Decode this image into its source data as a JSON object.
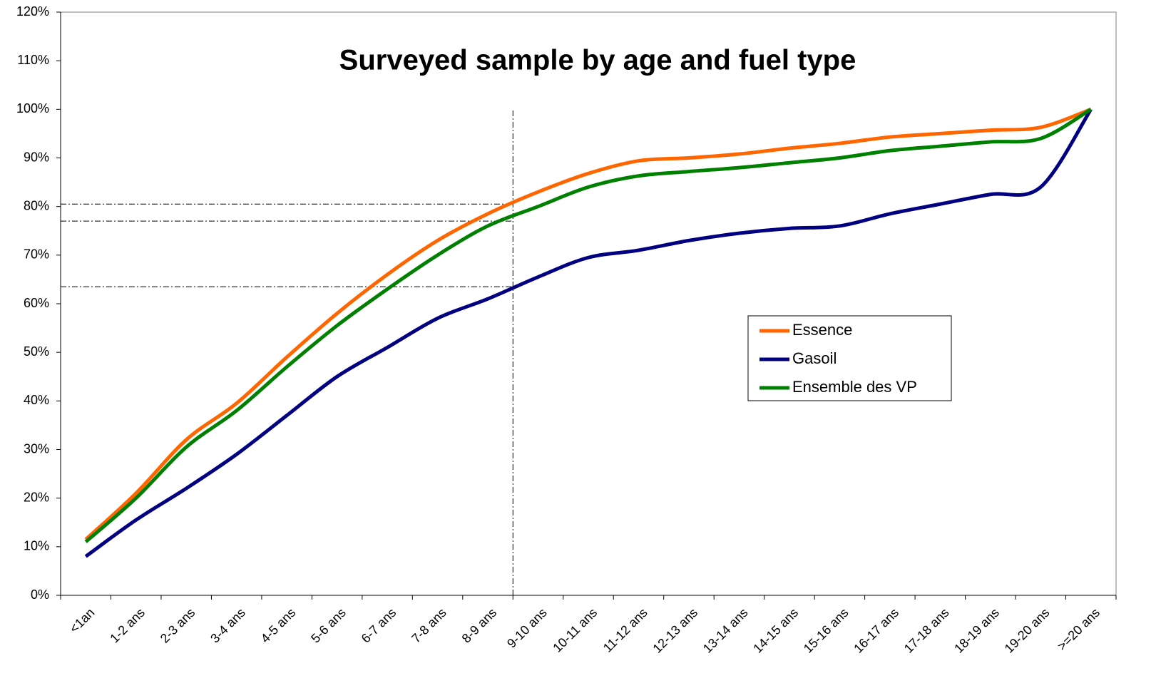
{
  "chart_data": {
    "type": "line",
    "title": "Surveyed sample by age and fuel type",
    "categories": [
      "<1an",
      "1-2 ans",
      "2-3 ans",
      "3-4 ans",
      "4-5 ans",
      "5-6 ans",
      "6-7 ans",
      "7-8 ans",
      "8-9 ans",
      "9-10 ans",
      "10-11 ans",
      "11-12 ans",
      "12-13 ans",
      "13-14 ans",
      "14-15 ans",
      "15-16 ans",
      "16-17 ans",
      "17-18 ans",
      "18-19 ans",
      "19-20 ans",
      ">=20 ans"
    ],
    "series": [
      {
        "name": "Essence",
        "color": "#ff6600",
        "values": [
          11.5,
          21,
          32,
          39.5,
          49,
          58,
          66,
          73,
          78.5,
          83,
          86.8,
          89.4,
          90,
          90.8,
          92,
          93,
          94.3,
          95,
          95.7,
          96.3,
          100
        ]
      },
      {
        "name": "Gasoil",
        "color": "#000080",
        "values": [
          8,
          15.5,
          22,
          29,
          37,
          45,
          51,
          57,
          61,
          65.5,
          69.5,
          71,
          73,
          74.5,
          75.5,
          76,
          78.5,
          80.5,
          82.5,
          84,
          100
        ]
      },
      {
        "name": "Ensemble des VP",
        "color": "#008000",
        "values": [
          11,
          20,
          30.5,
          38,
          47,
          55.5,
          63,
          70,
          76,
          80,
          84,
          86.3,
          87.2,
          88,
          89,
          90,
          91.5,
          92.4,
          93.3,
          94,
          100
        ]
      }
    ],
    "ylim": [
      0,
      120
    ],
    "yticks": [
      {
        "value": 0,
        "label": "0%"
      },
      {
        "value": 10,
        "label": "10%"
      },
      {
        "value": 20,
        "label": "20%"
      },
      {
        "value": 30,
        "label": "30%"
      },
      {
        "value": 40,
        "label": "40%"
      },
      {
        "value": 50,
        "label": "50%"
      },
      {
        "value": 60,
        "label": "60%"
      },
      {
        "value": 70,
        "label": "70%"
      },
      {
        "value": 80,
        "label": "80%"
      },
      {
        "value": 90,
        "label": "90%"
      },
      {
        "value": 100,
        "label": "100%"
      },
      {
        "value": 110,
        "label": "110%"
      },
      {
        "value": 120,
        "label": "120%"
      }
    ],
    "hlines": [
      80.5,
      77,
      63.5
    ],
    "vline": {
      "x": 8.5,
      "y": [
        0,
        100
      ]
    },
    "grid": false,
    "legend": "center-right"
  }
}
